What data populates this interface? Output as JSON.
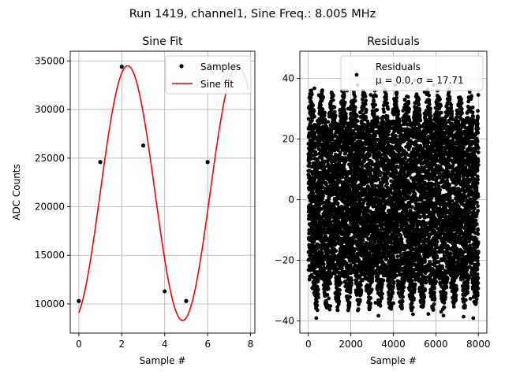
{
  "suptitle": "Run 1419, channel1, Sine Freq.: 8.005 MHz",
  "chart_data": [
    {
      "type": "line",
      "title": "Sine Fit",
      "xlabel": "Sample #",
      "ylabel": "ADC Counts",
      "xlim": [
        -0.4,
        8.2
      ],
      "ylim": [
        7000,
        36000
      ],
      "xticks": [
        0,
        2,
        4,
        6,
        8
      ],
      "xtick_labels": [
        "0",
        "2",
        "4",
        "6",
        "8"
      ],
      "yticks": [
        10000,
        15000,
        20000,
        25000,
        30000,
        35000
      ],
      "ytick_labels": [
        "10000",
        "15000",
        "20000",
        "25000",
        "30000",
        "35000"
      ],
      "grid": true,
      "legend_position": "top-right",
      "legend": [
        "Samples",
        "Sine fit"
      ],
      "series": [
        {
          "name": "Samples",
          "kind": "scatter",
          "color": "#000000",
          "x": [
            0,
            1,
            2,
            3,
            4,
            5,
            6
          ],
          "y": [
            10300,
            24600,
            34400,
            26300,
            11300,
            10300,
            24600
          ]
        },
        {
          "name": "Sine fit",
          "kind": "line",
          "color": "#ff0000",
          "function": "y = offset + amplitude * sin(2*pi*freq*x + phase)",
          "offset": 21400,
          "amplitude": 13100,
          "freq": 0.1953,
          "phase": -1.22,
          "x_range": [
            0,
            7.9
          ]
        }
      ]
    },
    {
      "type": "scatter",
      "title": "Residuals",
      "xlabel": "Sample #",
      "ylabel": "",
      "xlim": [
        -400,
        8400
      ],
      "ylim": [
        -44,
        49
      ],
      "xticks": [
        0,
        2000,
        4000,
        6000,
        8000
      ],
      "xtick_labels": [
        "0",
        "2000",
        "4000",
        "6000",
        "8000"
      ],
      "yticks": [
        -40,
        -20,
        0,
        20,
        40
      ],
      "ytick_labels": [
        "−40",
        "−20",
        "0",
        "20",
        "40"
      ],
      "grid": true,
      "legend_position": "top-right",
      "legend": [
        "Residuals",
        "μ = 0.0, σ = 17.71"
      ],
      "series": [
        {
          "name": "Residuals",
          "color": "#000000",
          "n_points": 8192,
          "x_range": [
            0,
            8000
          ],
          "mean": 0.0,
          "std": 17.71,
          "y_range": [
            -40,
            45
          ]
        }
      ]
    }
  ]
}
